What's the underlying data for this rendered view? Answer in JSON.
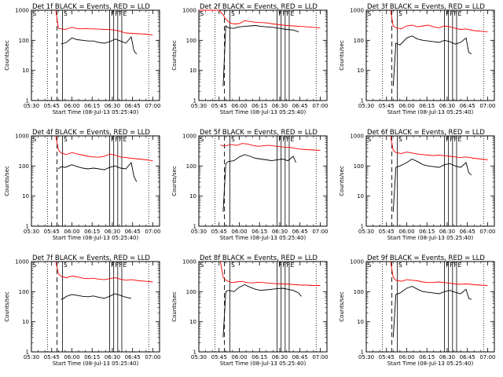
{
  "chart_data": [
    {
      "type": "line",
      "title": "Det 1f BLACK = Events, RED = LLD",
      "xlabel": "Start Time (08-Jul-13 05:25:40)",
      "ylabel": "Counts/sec",
      "x_ticks": [
        "05:30",
        "05:45",
        "06:00",
        "06:15",
        "06:30",
        "06:45",
        "07:00"
      ],
      "y_ticks": [
        "1",
        "10",
        "100",
        "1000"
      ],
      "ylim": [
        1,
        1000
      ],
      "yscale": "log",
      "markers": [
        "S",
        "F",
        "F",
        "F",
        "E"
      ],
      "series": [
        {
          "color": "#ff0000",
          "x": [
            "05:48",
            "05:50",
            "05:52",
            "05:55",
            "06:00",
            "06:05",
            "06:10",
            "06:15",
            "06:20",
            "06:25",
            "06:30",
            "06:35",
            "06:40",
            "06:45",
            "06:50",
            "06:55",
            "07:00"
          ],
          "values": [
            1000,
            250,
            240,
            230,
            270,
            240,
            245,
            240,
            235,
            230,
            225,
            205,
            175,
            170,
            165,
            160,
            150
          ]
        },
        {
          "color": "#000000",
          "x": [
            "05:52",
            "05:54",
            "05:56",
            "06:00",
            "06:04",
            "06:08",
            "06:12",
            "06:16",
            "06:20",
            "06:24",
            "06:28",
            "06:32",
            "06:36",
            "06:40",
            "06:44",
            "06:46",
            "06:48"
          ],
          "values": [
            75,
            80,
            85,
            120,
            105,
            100,
            95,
            95,
            85,
            80,
            90,
            110,
            95,
            80,
            130,
            45,
            35
          ]
        }
      ]
    },
    {
      "type": "line",
      "title": "Det 2f BLACK = Events, RED = LLD",
      "xlabel": "Start Time (08-Jul-13 05:25:40)",
      "ylabel": "Counts/sec",
      "x_ticks": [
        "05:30",
        "05:45",
        "06:00",
        "06:15",
        "06:30",
        "06:45",
        "07:00"
      ],
      "y_ticks": [
        "1",
        "10",
        "100",
        "1000"
      ],
      "ylim": [
        1,
        1000
      ],
      "yscale": "log",
      "markers": [
        "S",
        "F",
        "F",
        "F",
        "E"
      ],
      "series": [
        {
          "color": "#ff0000",
          "x": [
            "05:30",
            "05:40",
            "05:45",
            "05:48",
            "05:50",
            "05:53",
            "05:56",
            "06:00",
            "06:04",
            "06:08",
            "06:12",
            "06:16",
            "06:20",
            "06:25",
            "06:30",
            "06:35",
            "06:40",
            "06:45",
            "06:50",
            "06:55",
            "07:00"
          ],
          "values": [
            1000,
            1000,
            1000,
            700,
            500,
            380,
            350,
            360,
            450,
            420,
            400,
            390,
            380,
            350,
            330,
            310,
            300,
            290,
            280,
            270,
            260
          ]
        },
        {
          "color": "#000000",
          "x": [
            "05:48",
            "05:50",
            "05:52",
            "05:56",
            "06:00",
            "06:04",
            "06:08",
            "06:12",
            "06:16",
            "06:20",
            "06:25",
            "06:30",
            "06:35",
            "06:40",
            "06:44"
          ],
          "values": [
            3,
            300,
            260,
            250,
            280,
            290,
            300,
            310,
            290,
            280,
            270,
            250,
            230,
            220,
            190
          ]
        }
      ]
    },
    {
      "type": "line",
      "title": "Det 3f BLACK = Events, RED = LLD",
      "xlabel": "Start Time (08-Jul-13 05:25:40)",
      "ylabel": "Counts/sec",
      "x_ticks": [
        "05:30",
        "05:45",
        "06:00",
        "06:15",
        "06:30",
        "06:45",
        "07:00"
      ],
      "y_ticks": [
        "1",
        "10",
        "100",
        "1000"
      ],
      "ylim": [
        1,
        1000
      ],
      "yscale": "log",
      "markers": [
        "S",
        "F",
        "F",
        "F",
        "E"
      ],
      "series": [
        {
          "color": "#ff0000",
          "x": [
            "05:48",
            "05:50",
            "05:52",
            "05:56",
            "06:00",
            "06:04",
            "06:08",
            "06:12",
            "06:16",
            "06:20",
            "06:24",
            "06:28",
            "06:32",
            "06:36",
            "06:40",
            "06:44",
            "06:50",
            "06:55",
            "07:00"
          ],
          "values": [
            1000,
            300,
            260,
            240,
            300,
            320,
            280,
            300,
            320,
            280,
            260,
            300,
            280,
            250,
            230,
            240,
            210,
            200,
            190
          ]
        },
        {
          "color": "#000000",
          "x": [
            "05:50",
            "05:52",
            "05:55",
            "06:00",
            "06:04",
            "06:08",
            "06:12",
            "06:16",
            "06:20",
            "06:24",
            "06:28",
            "06:32",
            "06:36",
            "06:40",
            "06:44",
            "06:46",
            "06:48"
          ],
          "values": [
            3,
            80,
            70,
            120,
            140,
            110,
            100,
            95,
            90,
            85,
            100,
            90,
            75,
            85,
            120,
            40,
            35
          ]
        }
      ]
    },
    {
      "type": "line",
      "title": "Det 4f BLACK = Events, RED = LLD",
      "xlabel": "Start Time (08-Jul-13 05:25:40)",
      "ylabel": "Counts/sec",
      "x_ticks": [
        "05:30",
        "05:45",
        "06:00",
        "06:15",
        "06:30",
        "06:45",
        "07:00"
      ],
      "y_ticks": [
        "1",
        "10",
        "100",
        "1000"
      ],
      "ylim": [
        1,
        1000
      ],
      "yscale": "log",
      "markers": [
        "S",
        "F",
        "F",
        "F",
        "E"
      ],
      "series": [
        {
          "color": "#ff0000",
          "x": [
            "05:48",
            "05:50",
            "05:52",
            "05:56",
            "06:00",
            "06:04",
            "06:08",
            "06:12",
            "06:16",
            "06:20",
            "06:24",
            "06:28",
            "06:32",
            "06:36",
            "06:40",
            "06:44",
            "06:50",
            "06:55",
            "07:00"
          ],
          "values": [
            1000,
            350,
            270,
            240,
            280,
            250,
            230,
            210,
            200,
            195,
            210,
            250,
            230,
            200,
            190,
            180,
            170,
            160,
            150
          ]
        },
        {
          "color": "#000000",
          "x": [
            "05:50",
            "05:52",
            "05:55",
            "06:00",
            "06:04",
            "06:08",
            "06:12",
            "06:16",
            "06:20",
            "06:24",
            "06:28",
            "06:32",
            "06:36",
            "06:40",
            "06:44",
            "06:46",
            "06:48"
          ],
          "values": [
            80,
            95,
            90,
            110,
            95,
            85,
            80,
            85,
            80,
            75,
            90,
            100,
            85,
            80,
            130,
            45,
            30
          ]
        }
      ]
    },
    {
      "type": "line",
      "title": "Det 5f BLACK = Events, RED = LLD",
      "xlabel": "Start Time (08-Jul-13 05:25:40)",
      "ylabel": "Counts/sec",
      "x_ticks": [
        "05:30",
        "05:45",
        "06:00",
        "06:15",
        "06:30",
        "06:45",
        "07:00"
      ],
      "y_ticks": [
        "1",
        "10",
        "100",
        "1000"
      ],
      "ylim": [
        1,
        1000
      ],
      "yscale": "log",
      "markers": [
        "S",
        "F",
        "F",
        "F",
        "E"
      ],
      "series": [
        {
          "color": "#ff0000",
          "x": [
            "05:46",
            "05:48",
            "05:50",
            "05:54",
            "05:58",
            "06:02",
            "06:06",
            "06:10",
            "06:14",
            "06:18",
            "06:22",
            "06:26",
            "06:30",
            "06:34",
            "06:38",
            "06:42",
            "06:46",
            "06:50",
            "06:55",
            "07:00"
          ],
          "values": [
            500,
            460,
            470,
            520,
            480,
            560,
            540,
            480,
            450,
            470,
            490,
            460,
            440,
            420,
            410,
            380,
            360,
            350,
            340,
            330
          ]
        },
        {
          "color": "#000000",
          "x": [
            "05:48",
            "05:50",
            "05:52",
            "05:56",
            "06:00",
            "06:04",
            "06:08",
            "06:12",
            "06:16",
            "06:20",
            "06:24",
            "06:28",
            "06:32",
            "06:36",
            "06:40",
            "06:42"
          ],
          "values": [
            3,
            120,
            140,
            150,
            200,
            240,
            210,
            180,
            170,
            160,
            150,
            160,
            170,
            150,
            210,
            130
          ]
        }
      ]
    },
    {
      "type": "line",
      "title": "Det 6f BLACK = Events, RED = LLD",
      "xlabel": "Start Time (08-Jul-13 05:25:40)",
      "ylabel": "Counts/sec",
      "x_ticks": [
        "05:30",
        "05:45",
        "06:00",
        "06:15",
        "06:30",
        "06:45",
        "07:00"
      ],
      "y_ticks": [
        "1",
        "10",
        "100",
        "1000"
      ],
      "ylim": [
        1,
        1000
      ],
      "yscale": "log",
      "markers": [
        "S",
        "F",
        "F",
        "F",
        "E"
      ],
      "series": [
        {
          "color": "#ff0000",
          "x": [
            "05:48",
            "05:50",
            "05:52",
            "05:56",
            "06:00",
            "06:04",
            "06:08",
            "06:12",
            "06:16",
            "06:20",
            "06:24",
            "06:28",
            "06:32",
            "06:36",
            "06:40",
            "06:44",
            "06:50",
            "06:55",
            "07:00"
          ],
          "values": [
            1000,
            330,
            280,
            260,
            290,
            270,
            250,
            240,
            230,
            220,
            230,
            220,
            210,
            200,
            190,
            200,
            180,
            170,
            160
          ]
        },
        {
          "color": "#000000",
          "x": [
            "05:50",
            "05:52",
            "05:55",
            "06:00",
            "06:04",
            "06:08",
            "06:12",
            "06:16",
            "06:20",
            "06:24",
            "06:28",
            "06:32",
            "06:36",
            "06:40",
            "06:44",
            "06:46",
            "06:48"
          ],
          "values": [
            3,
            90,
            100,
            130,
            170,
            140,
            110,
            100,
            95,
            90,
            110,
            120,
            100,
            90,
            130,
            60,
            50
          ]
        }
      ]
    },
    {
      "type": "line",
      "title": "Det 7f BLACK = Events, RED = LLD",
      "xlabel": "Start Time (08-Jul-13 05:25:40)",
      "ylabel": "Counts/sec",
      "x_ticks": [
        "05:30",
        "05:45",
        "06:00",
        "06:15",
        "06:30",
        "06:45",
        "07:00"
      ],
      "y_ticks": [
        "1",
        "10",
        "100",
        "1000"
      ],
      "ylim": [
        1,
        1000
      ],
      "yscale": "log",
      "markers": [
        "S",
        "F",
        "F",
        "F",
        "E"
      ],
      "series": [
        {
          "color": "#ff0000",
          "x": [
            "05:48",
            "05:50",
            "05:52",
            "05:56",
            "06:00",
            "06:04",
            "06:08",
            "06:12",
            "06:16",
            "06:20",
            "06:24",
            "06:28",
            "06:32",
            "06:36",
            "06:40",
            "06:44",
            "06:50",
            "06:55",
            "07:00"
          ],
          "values": [
            1000,
            400,
            320,
            290,
            330,
            310,
            280,
            270,
            280,
            260,
            250,
            270,
            290,
            260,
            240,
            250,
            230,
            220,
            210
          ]
        },
        {
          "color": "#000000",
          "x": [
            "05:52",
            "05:54",
            "05:56",
            "06:00",
            "06:04",
            "06:08",
            "06:12",
            "06:16",
            "06:20",
            "06:24",
            "06:28",
            "06:32",
            "06:36",
            "06:40",
            "06:44"
          ],
          "values": [
            55,
            60,
            70,
            80,
            75,
            70,
            68,
            72,
            65,
            60,
            70,
            85,
            75,
            65,
            60
          ]
        }
      ]
    },
    {
      "type": "line",
      "title": "Det 8f BLACK = Events, RED = LLD",
      "xlabel": "Start Time (08-Jul-13 05:25:40)",
      "ylabel": "Counts/sec",
      "x_ticks": [
        "05:30",
        "05:45",
        "06:00",
        "06:15",
        "06:30",
        "06:45",
        "07:00"
      ],
      "y_ticks": [
        "1",
        "10",
        "100",
        "1000"
      ],
      "ylim": [
        1,
        1000
      ],
      "yscale": "log",
      "markers": [
        "S",
        "F",
        "F",
        "F",
        "E"
      ],
      "series": [
        {
          "color": "#ff0000",
          "x": [
            "05:46",
            "05:48",
            "05:50",
            "05:54",
            "05:58",
            "06:02",
            "06:06",
            "06:10",
            "06:14",
            "06:18",
            "06:22",
            "06:26",
            "06:30",
            "06:34",
            "06:38",
            "06:42",
            "06:46",
            "06:50",
            "06:55",
            "07:00"
          ],
          "values": [
            1000,
            300,
            240,
            200,
            210,
            220,
            200,
            195,
            205,
            200,
            190,
            185,
            180,
            180,
            175,
            170,
            165,
            165,
            160,
            160
          ]
        },
        {
          "color": "#000000",
          "x": [
            "05:48",
            "05:50",
            "05:52",
            "05:56",
            "06:00",
            "06:04",
            "06:08",
            "06:12",
            "06:16",
            "06:20",
            "06:24",
            "06:28",
            "06:32",
            "06:36",
            "06:40",
            "06:44",
            "06:46"
          ],
          "values": [
            3,
            100,
            110,
            100,
            140,
            170,
            140,
            120,
            110,
            115,
            120,
            125,
            130,
            120,
            110,
            90,
            70
          ]
        }
      ]
    },
    {
      "type": "line",
      "title": "Det 9f BLACK = Events, RED = LLD",
      "xlabel": "Start Time (08-Jul-13 05:25:40)",
      "ylabel": "Counts/sec",
      "x_ticks": [
        "05:30",
        "05:45",
        "06:00",
        "06:15",
        "06:30",
        "06:45",
        "07:00"
      ],
      "y_ticks": [
        "1",
        "10",
        "100",
        "1000"
      ],
      "ylim": [
        1,
        1000
      ],
      "yscale": "log",
      "markers": [
        "S",
        "F",
        "F",
        "F",
        "E"
      ],
      "series": [
        {
          "color": "#ff0000",
          "x": [
            "05:48",
            "05:50",
            "05:52",
            "05:56",
            "06:00",
            "06:04",
            "06:08",
            "06:12",
            "06:16",
            "06:20",
            "06:24",
            "06:28",
            "06:32",
            "06:36",
            "06:40",
            "06:44",
            "06:50",
            "06:55",
            "07:00"
          ],
          "values": [
            1000,
            300,
            240,
            220,
            250,
            240,
            230,
            210,
            200,
            205,
            210,
            200,
            190,
            180,
            175,
            180,
            170,
            165,
            160
          ]
        },
        {
          "color": "#000000",
          "x": [
            "05:50",
            "05:52",
            "05:55",
            "06:00",
            "06:04",
            "06:08",
            "06:12",
            "06:16",
            "06:20",
            "06:24",
            "06:28",
            "06:32",
            "06:36",
            "06:40",
            "06:44",
            "06:46",
            "06:48"
          ],
          "values": [
            3,
            80,
            90,
            130,
            150,
            120,
            100,
            95,
            90,
            85,
            100,
            110,
            95,
            85,
            120,
            60,
            55
          ]
        }
      ]
    }
  ]
}
